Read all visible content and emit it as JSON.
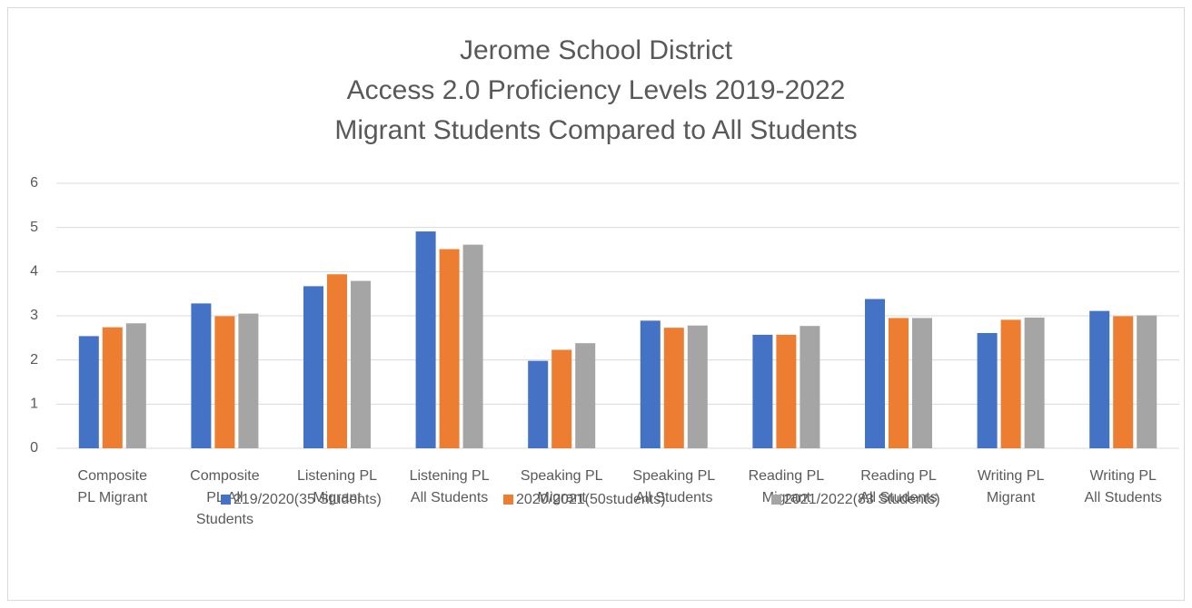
{
  "chart_data": {
    "type": "bar",
    "title": [
      "Jerome School District",
      "Access 2.0 Proficiency Levels 2019-2022",
      "Migrant Students Compared to All Students"
    ],
    "categories": [
      [
        "Composite",
        "PL Migrant"
      ],
      [
        "Composite",
        "PL All",
        "Students"
      ],
      [
        "Listening PL",
        "Migrant"
      ],
      [
        "Listening PL",
        "All Students"
      ],
      [
        "Speaking PL",
        "Migrant"
      ],
      [
        "Speaking PL",
        "All Students"
      ],
      [
        "Reading PL",
        "Migrant"
      ],
      [
        "Reading PL",
        "All Students"
      ],
      [
        "Writing PL",
        "Migrant"
      ],
      [
        "Writing PL",
        "All Students"
      ]
    ],
    "series": [
      {
        "name": "219/2020(35 Students)",
        "color": "#4472c4",
        "values": [
          2.54,
          3.28,
          3.67,
          4.91,
          1.98,
          2.89,
          2.57,
          3.38,
          2.61,
          3.11
        ]
      },
      {
        "name": "2020/2021(50students)",
        "color": "#ed7d31",
        "values": [
          2.74,
          2.99,
          3.94,
          4.51,
          2.23,
          2.73,
          2.57,
          2.95,
          2.91,
          2.99
        ]
      },
      {
        "name": "2021/2022(83 Students)",
        "color": "#a5a5a5",
        "values": [
          2.83,
          3.05,
          3.79,
          4.61,
          2.38,
          2.78,
          2.77,
          2.95,
          2.96,
          3.01
        ]
      }
    ],
    "ylim": [
      0,
      6
    ],
    "yticks": [
      0,
      1,
      2,
      3,
      4,
      5,
      6
    ],
    "grid": true,
    "legend": "bottom"
  }
}
